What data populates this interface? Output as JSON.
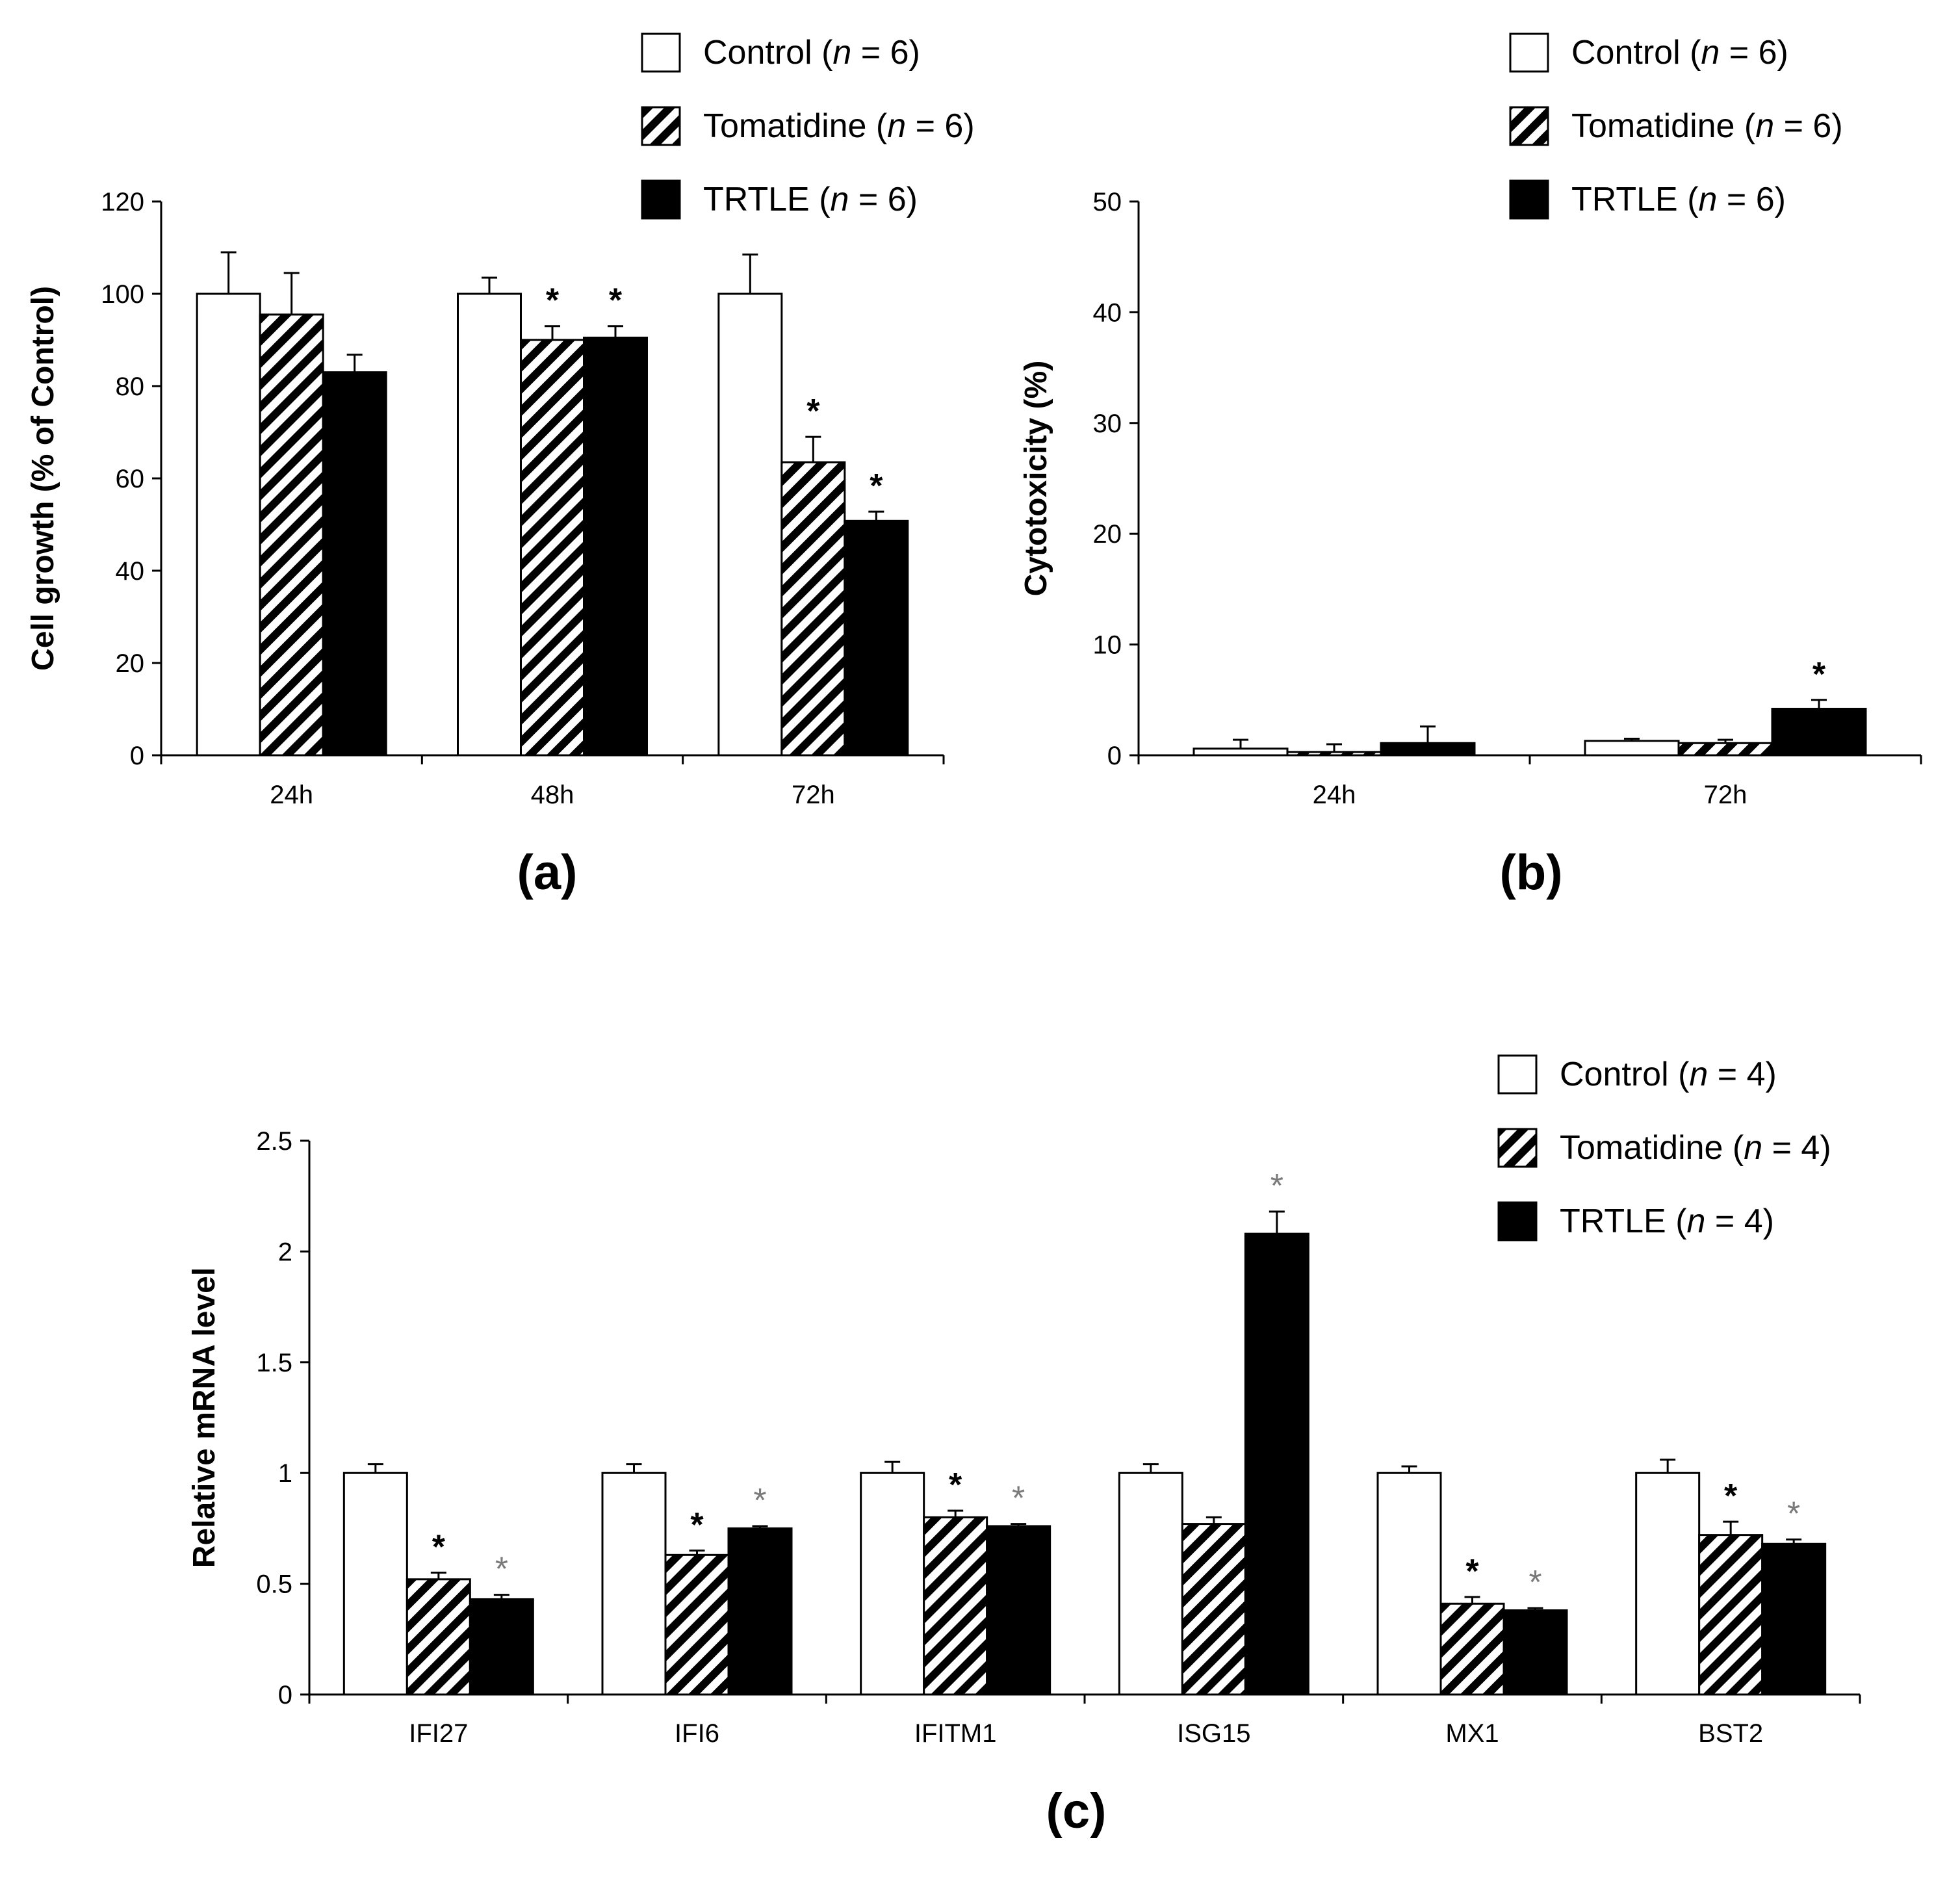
{
  "chart_data": [
    {
      "id": "a",
      "type": "bar",
      "panel_label": "(a)",
      "ylabel": "Cell growth (% of Control)",
      "ylim": [
        0,
        120
      ],
      "yticks": [
        0,
        20,
        40,
        60,
        80,
        100,
        120
      ],
      "categories": [
        "24h",
        "48h",
        "72h"
      ],
      "series": [
        {
          "name": "Control",
          "n": "6",
          "pattern": "white",
          "values": [
            100,
            100,
            100
          ],
          "errors": [
            9,
            3.5,
            8.5
          ],
          "sig": [
            false,
            false,
            false
          ]
        },
        {
          "name": "Tomatidine",
          "n": "6",
          "pattern": "hatch",
          "values": [
            95.5,
            90,
            63.5
          ],
          "errors": [
            9,
            3,
            5.5
          ],
          "sig": [
            false,
            true,
            true
          ]
        },
        {
          "name": "TRTLE",
          "n": "6",
          "pattern": "black",
          "values": [
            83,
            90.5,
            50.8
          ],
          "errors": [
            3.8,
            2.5,
            2
          ],
          "sig": [
            false,
            true,
            true
          ]
        }
      ],
      "legend_position": "top-right"
    },
    {
      "id": "b",
      "type": "bar",
      "panel_label": "(b)",
      "ylabel": "Cytotoxicity (%)",
      "ylim": [
        0,
        50
      ],
      "yticks": [
        0,
        10,
        20,
        30,
        40,
        50
      ],
      "categories": [
        "24h",
        "72h"
      ],
      "series": [
        {
          "name": "Control",
          "n": "6",
          "pattern": "white",
          "values": [
            0.6,
            1.3
          ],
          "errors": [
            0.8,
            0.2
          ],
          "sig": [
            false,
            false
          ]
        },
        {
          "name": "Tomatidine",
          "n": "6",
          "pattern": "hatch",
          "values": [
            0.3,
            1.1
          ],
          "errors": [
            0.7,
            0.3
          ],
          "sig": [
            false,
            false
          ]
        },
        {
          "name": "TRTLE",
          "n": "6",
          "pattern": "black",
          "values": [
            1.1,
            4.2
          ],
          "errors": [
            1.5,
            0.8
          ],
          "sig": [
            false,
            true
          ]
        }
      ],
      "legend_position": "top-right"
    },
    {
      "id": "c",
      "type": "bar",
      "panel_label": "(c)",
      "ylabel": "Relative mRNA level",
      "ylim": [
        0,
        2.5
      ],
      "yticks": [
        0,
        0.5,
        1,
        1.5,
        2,
        2.5
      ],
      "ytick_labels": [
        "0",
        "0.5",
        "1",
        "1.5",
        "2",
        "2.5"
      ],
      "categories": [
        "IFI27",
        "IFI6",
        "IFITM1",
        "ISG15",
        "MX1",
        "BST2"
      ],
      "series": [
        {
          "name": "Control",
          "n": "4",
          "pattern": "white",
          "values": [
            1,
            1,
            1,
            1,
            1,
            1
          ],
          "errors": [
            0.04,
            0.04,
            0.05,
            0.04,
            0.03,
            0.06
          ],
          "sig": [
            false,
            false,
            false,
            false,
            false,
            false
          ]
        },
        {
          "name": "Tomatidine",
          "n": "4",
          "pattern": "hatch",
          "values": [
            0.52,
            0.63,
            0.8,
            0.77,
            0.41,
            0.72
          ],
          "errors": [
            0.03,
            0.02,
            0.03,
            0.03,
            0.03,
            0.06
          ],
          "sig": [
            true,
            true,
            true,
            false,
            true,
            true
          ]
        },
        {
          "name": "TRTLE",
          "n": "4",
          "pattern": "black",
          "values": [
            0.43,
            0.75,
            0.76,
            2.08,
            0.38,
            0.68
          ],
          "errors": [
            0.02,
            0.01,
            0.01,
            0.1,
            0.01,
            0.02
          ],
          "sig": [
            true,
            true,
            true,
            true,
            true,
            true
          ]
        }
      ],
      "significance_marker": "*",
      "legend_position": "top-right"
    }
  ]
}
